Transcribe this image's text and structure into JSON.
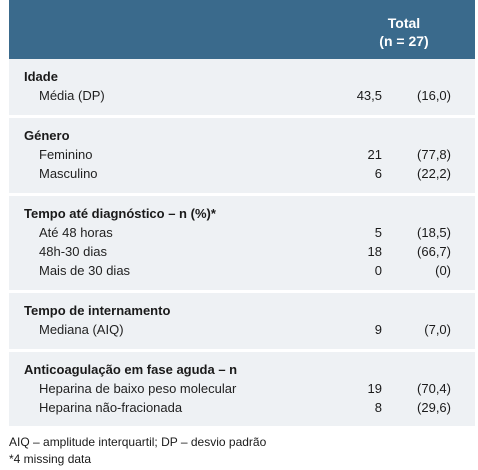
{
  "header": {
    "total_label": "Total",
    "n_label": "(n = 27)"
  },
  "rows": {
    "idade": {
      "label": "Idade",
      "media_label": "Média (DP)",
      "media_value": "43,5",
      "media_sd": "(16,0)"
    },
    "genero": {
      "label": "Género",
      "feminino_label": "Feminino",
      "feminino_value": "21",
      "feminino_pct": "(77,8)",
      "masculino_label": "Masculino",
      "masculino_value": "6",
      "masculino_pct": "(22,2)"
    },
    "tempo_diag": {
      "label": "Tempo até diagnóstico – n (%)*",
      "a_label": "Até 48 horas",
      "a_value": "5",
      "a_pct": "(18,5)",
      "b_label": "48h-30 dias",
      "b_value": "18",
      "b_pct": "(66,7)",
      "c_label": "Mais de 30 dias",
      "c_value": "0",
      "c_pct": "(0)"
    },
    "internamento": {
      "label": "Tempo de internamento",
      "mediana_label": "Mediana (AIQ)",
      "mediana_value": "9",
      "mediana_iqr": "(7,0)"
    },
    "anticoag": {
      "label": "Anticoagulação em fase aguda – n",
      "hbpm_label": "Heparina de baixo peso molecular",
      "hbpm_value": "19",
      "hbpm_pct": "(70,4)",
      "hnf_label": "Heparina não-fracionada",
      "hnf_value": "8",
      "hnf_pct": "(29,6)"
    }
  },
  "footnotes": {
    "abbrev": "AIQ – amplitude interquartil; DP – desvio padrão",
    "missing": "*4 missing data"
  }
}
